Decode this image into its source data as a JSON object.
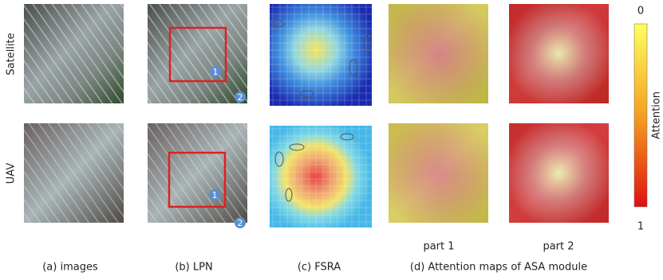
{
  "row_labels": [
    "Satellite",
    "UAV"
  ],
  "captions": [
    "(a) images",
    "(b) LPN",
    "(c) FSRA",
    "(d) Attention maps of ASA module"
  ],
  "part_labels": [
    "part 1",
    "part 2"
  ],
  "colorbar": {
    "title": "Attention",
    "top": "0",
    "bottom": "1"
  },
  "badges": [
    "1",
    "2"
  ]
}
